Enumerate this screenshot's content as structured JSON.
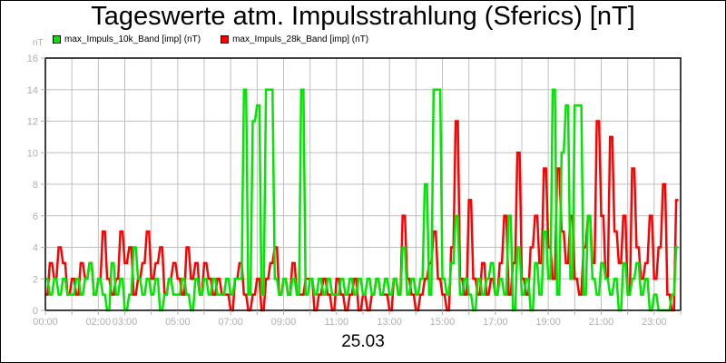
{
  "chart_data": {
    "type": "line",
    "title": "Tageswerte atm. Impulsstrahlung (Sferics) [nT]",
    "xlabel": "25.03",
    "ylabel": "nT",
    "ylim": [
      0,
      16
    ],
    "yticks": [
      "0",
      "2",
      "4",
      "6",
      "8",
      "10",
      "12",
      "14",
      "16"
    ],
    "xlim": [
      "00:00",
      "24:00"
    ],
    "xticks": [
      {
        "hour": 0,
        "label": "00:00"
      },
      {
        "hour": 1,
        "label": ""
      },
      {
        "hour": 2,
        "label": "02:00"
      },
      {
        "hour": 3,
        "label": "03:00"
      },
      {
        "hour": 4,
        "label": ""
      },
      {
        "hour": 5,
        "label": "05:00"
      },
      {
        "hour": 6,
        "label": ""
      },
      {
        "hour": 7,
        "label": "07:00"
      },
      {
        "hour": 8,
        "label": ""
      },
      {
        "hour": 9,
        "label": "09:00"
      },
      {
        "hour": 10,
        "label": ""
      },
      {
        "hour": 11,
        "label": "11:00"
      },
      {
        "hour": 12,
        "label": ""
      },
      {
        "hour": 13,
        "label": "13:00"
      },
      {
        "hour": 14,
        "label": ""
      },
      {
        "hour": 15,
        "label": "15:00"
      },
      {
        "hour": 16,
        "label": ""
      },
      {
        "hour": 17,
        "label": "17:00"
      },
      {
        "hour": 18,
        "label": ""
      },
      {
        "hour": 19,
        "label": "19:00"
      },
      {
        "hour": 20,
        "label": ""
      },
      {
        "hour": 21,
        "label": "21:00"
      },
      {
        "hour": 22,
        "label": ""
      },
      {
        "hour": 23,
        "label": "23:00"
      },
      {
        "hour": 24,
        "label": ""
      }
    ],
    "grid": true,
    "legend_position": "top-left",
    "sample_interval_minutes": 10,
    "series": [
      {
        "name": "max_Impuls_28k_Band [imp] (nT)",
        "color": "#ff0000",
        "values": [
          1,
          3,
          2,
          4,
          3,
          1,
          2,
          1,
          3,
          2,
          3,
          1,
          2,
          5,
          2,
          1,
          2,
          5,
          3,
          4,
          1,
          2,
          3,
          5,
          2,
          3,
          4,
          1,
          2,
          3,
          2,
          1,
          4,
          2,
          3,
          1,
          3,
          2,
          1,
          2,
          1,
          1,
          0,
          2,
          3,
          1,
          0,
          1,
          2,
          0,
          2,
          3,
          4,
          1,
          2,
          1,
          3,
          1,
          1,
          2,
          2,
          0,
          1,
          2,
          1,
          0,
          2,
          1,
          0,
          1,
          2,
          0,
          1,
          0,
          1,
          2,
          1,
          1,
          0,
          2,
          1,
          6,
          2,
          1,
          0,
          1,
          2,
          3,
          5,
          2,
          1,
          0,
          4,
          12,
          2,
          1,
          7,
          2,
          1,
          3,
          1,
          2,
          1,
          3,
          6,
          1,
          3,
          10,
          2,
          1,
          4,
          6,
          3,
          9,
          4,
          2,
          9,
          5,
          3,
          6,
          2,
          1,
          4,
          6,
          3,
          12,
          6,
          2,
          11,
          5,
          3,
          6,
          1,
          9,
          4,
          2,
          3,
          6,
          2,
          4,
          8,
          1,
          0,
          7
        ]
      },
      {
        "name": "max_Impuls_10k_Band [imp] (nT)",
        "color": "#00e600",
        "values": [
          2,
          1,
          2,
          1,
          2,
          1,
          1,
          2,
          1,
          2,
          3,
          1,
          2,
          1,
          0,
          3,
          1,
          2,
          0,
          1,
          4,
          2,
          1,
          2,
          1,
          2,
          0,
          1,
          2,
          1,
          1,
          2,
          1,
          0,
          2,
          1,
          2,
          1,
          2,
          1,
          1,
          2,
          1,
          2,
          2,
          14,
          1,
          12,
          13,
          1,
          14,
          14,
          2,
          1,
          2,
          1,
          2,
          1,
          14,
          1,
          2,
          1,
          2,
          1,
          2,
          1,
          1,
          2,
          1,
          2,
          1,
          2,
          1,
          2,
          1,
          2,
          1,
          2,
          1,
          2,
          1,
          4,
          1,
          2,
          1,
          2,
          8,
          1,
          14,
          14,
          2,
          1,
          3,
          6,
          1,
          2,
          1,
          0,
          2,
          1,
          2,
          3,
          1,
          2,
          1,
          6,
          0,
          4,
          1,
          2,
          0,
          3,
          1,
          5,
          2,
          14,
          1,
          10,
          13,
          2,
          13,
          13,
          1,
          6,
          2,
          1,
          3,
          2,
          1,
          2,
          0,
          3,
          1,
          2,
          3,
          1,
          2,
          0,
          1,
          0,
          0,
          0,
          1,
          4
        ]
      }
    ]
  },
  "header": {
    "title": "Tageswerte atm. Impulsstrahlung (Sferics) [nT]",
    "y_unit": "nT"
  },
  "legend": {
    "items": [
      {
        "label": "max_Impuls_10k_Band [imp] (nT)",
        "color": "#00e600"
      },
      {
        "label": "max_Impuls_28k_Band [imp] (nT)",
        "color": "#ff0000"
      }
    ]
  },
  "footer": {
    "date": "25.03"
  }
}
